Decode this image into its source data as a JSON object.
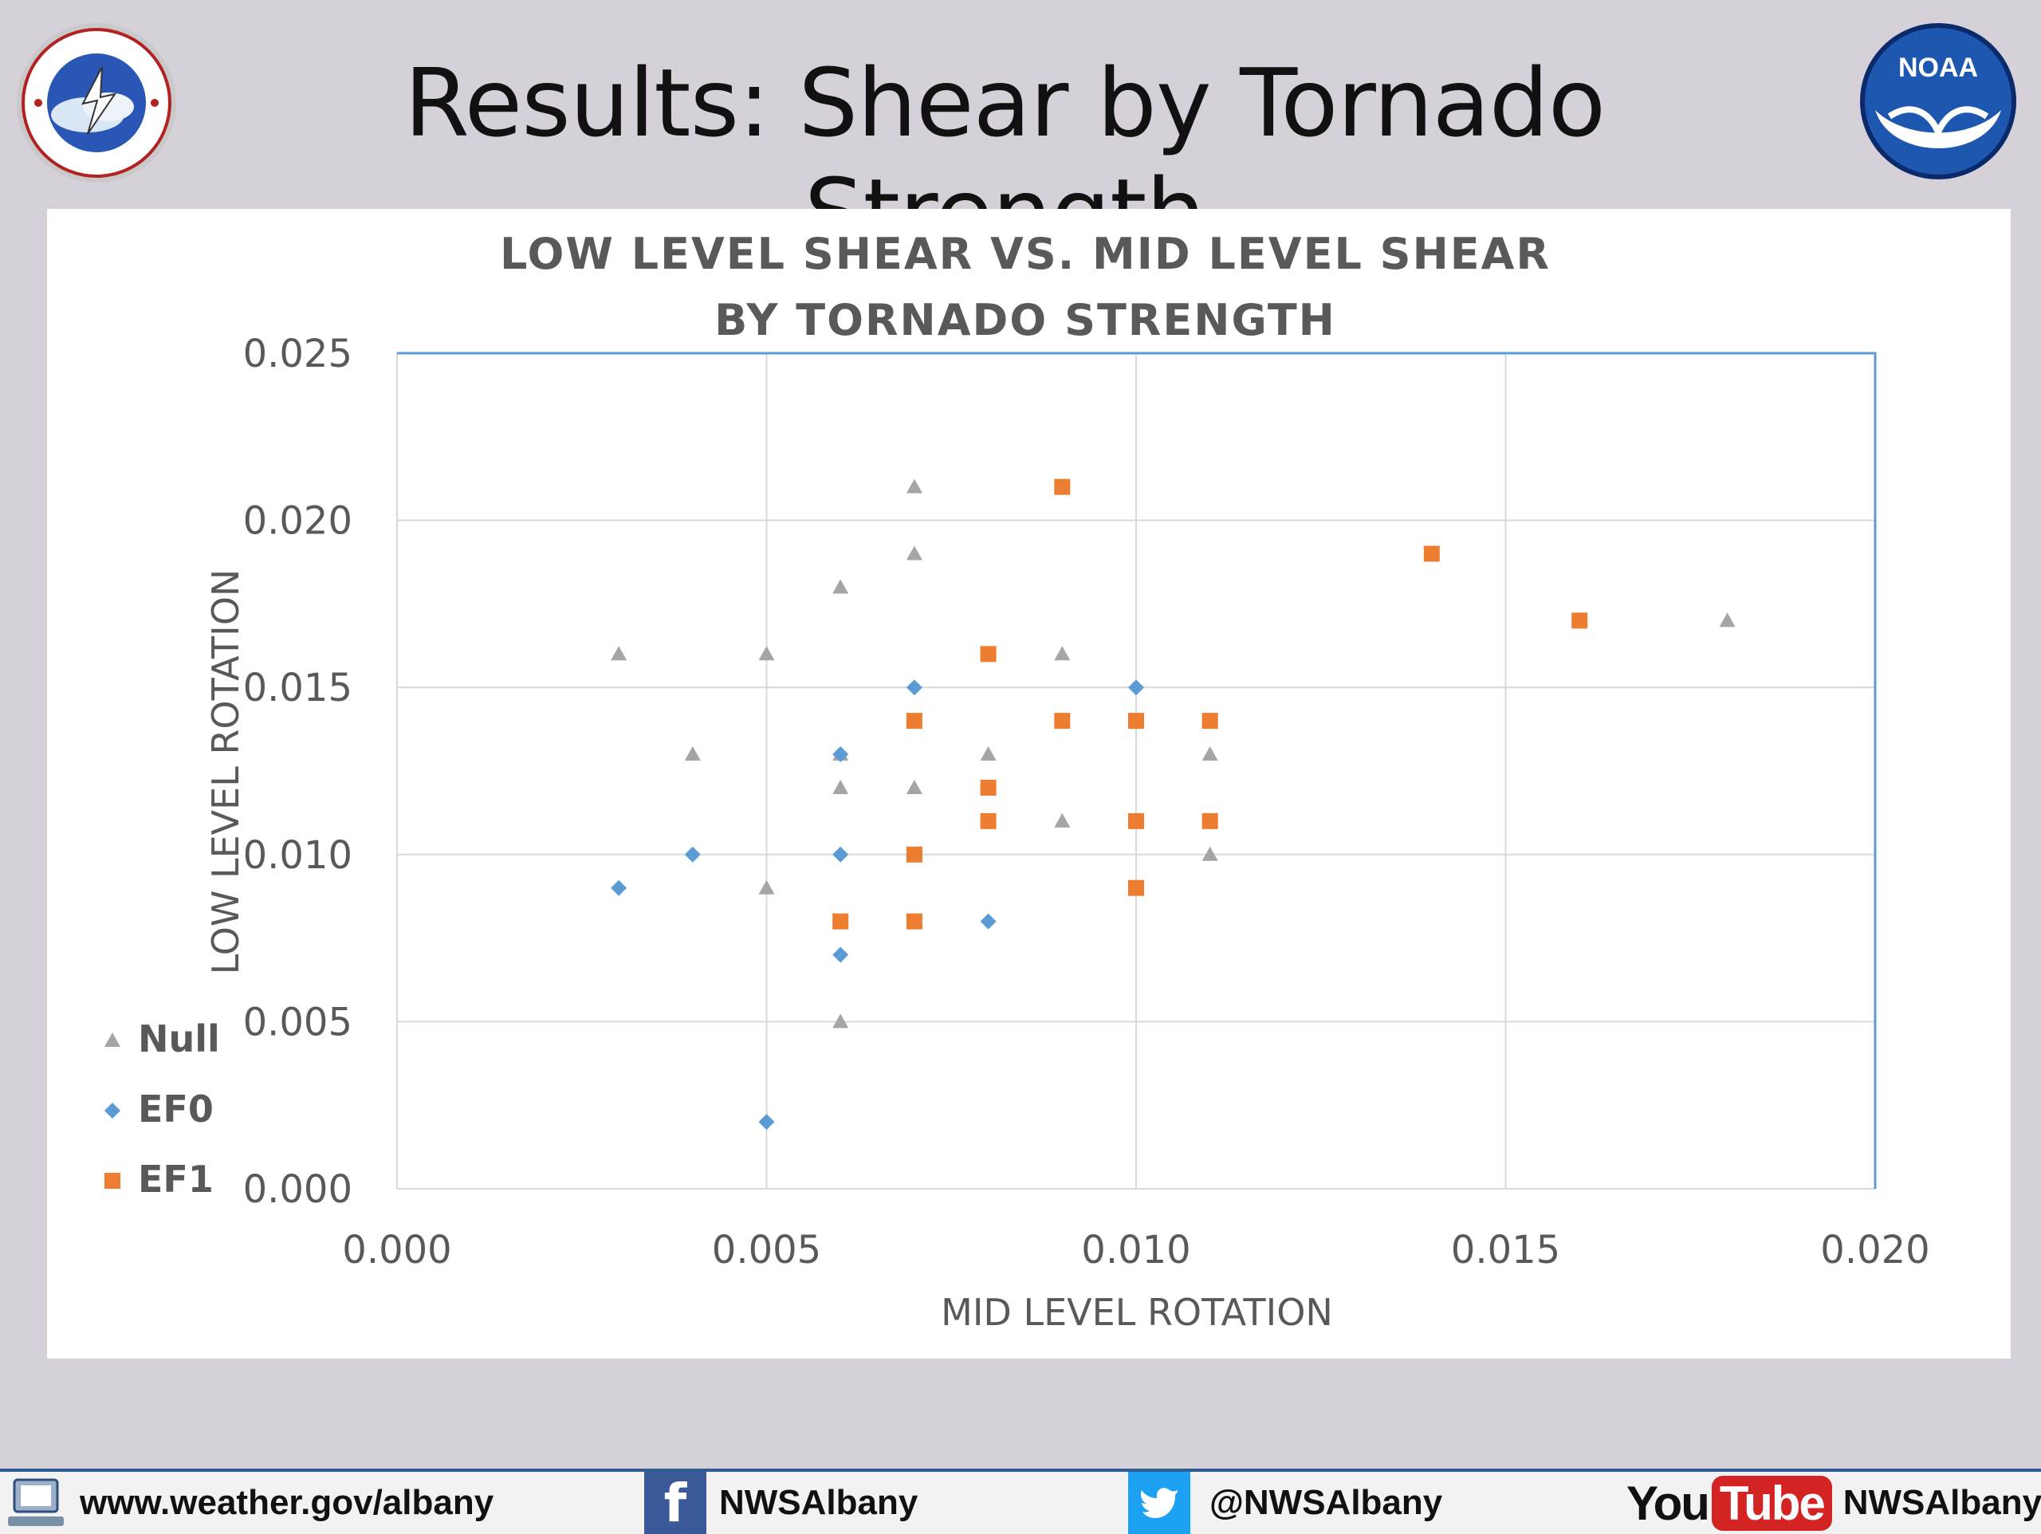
{
  "slide": {
    "title": "Results: Shear by Tornado Strength",
    "logo_left": "National Weather Service",
    "logo_right": "NOAA"
  },
  "footer": {
    "website": "www.weather.gov/albany",
    "facebook": "NWSAlbany",
    "twitter": "@NWSAlbany",
    "youtube_you": "You",
    "youtube_tube": "Tube",
    "youtube": "NWSAlbany",
    "icons": [
      "computer-icon",
      "facebook-icon",
      "twitter-icon",
      "youtube-icon"
    ]
  },
  "chart_data": {
    "type": "scatter",
    "title_line1": "LOW LEVEL SHEAR VS. MID LEVEL SHEAR",
    "title_line2": "BY TORNADO STRENGTH",
    "xlabel": "MID LEVEL ROTATION",
    "ylabel": "LOW LEVEL ROTATION",
    "xlim": [
      0,
      0.02
    ],
    "ylim": [
      0,
      0.025
    ],
    "xticks": [
      "0.000",
      "0.005",
      "0.010",
      "0.015",
      "0.020"
    ],
    "yticks": [
      "0.000",
      "0.005",
      "0.010",
      "0.015",
      "0.020",
      "0.025"
    ],
    "grid": true,
    "legend_position": "bottom-left",
    "series": [
      {
        "name": "Null",
        "marker": "triangle",
        "color": "#a5a5a5",
        "points": [
          [
            0.003,
            0.016
          ],
          [
            0.004,
            0.013
          ],
          [
            0.005,
            0.016
          ],
          [
            0.005,
            0.009
          ],
          [
            0.006,
            0.018
          ],
          [
            0.006,
            0.012
          ],
          [
            0.006,
            0.005
          ],
          [
            0.006,
            0.013
          ],
          [
            0.007,
            0.021
          ],
          [
            0.007,
            0.019
          ],
          [
            0.007,
            0.012
          ],
          [
            0.008,
            0.013
          ],
          [
            0.009,
            0.016
          ],
          [
            0.009,
            0.011
          ],
          [
            0.011,
            0.013
          ],
          [
            0.011,
            0.01
          ],
          [
            0.018,
            0.017
          ]
        ]
      },
      {
        "name": "EF0",
        "marker": "diamond",
        "color": "#5b9bd5",
        "points": [
          [
            0.003,
            0.009
          ],
          [
            0.004,
            0.01
          ],
          [
            0.005,
            0.002
          ],
          [
            0.006,
            0.013
          ],
          [
            0.006,
            0.01
          ],
          [
            0.006,
            0.007
          ],
          [
            0.007,
            0.015
          ],
          [
            0.008,
            0.008
          ],
          [
            0.01,
            0.015
          ]
        ]
      },
      {
        "name": "EF1",
        "marker": "square",
        "color": "#ed7d31",
        "points": [
          [
            0.006,
            0.008
          ],
          [
            0.007,
            0.014
          ],
          [
            0.007,
            0.01
          ],
          [
            0.007,
            0.008
          ],
          [
            0.008,
            0.016
          ],
          [
            0.008,
            0.012
          ],
          [
            0.008,
            0.011
          ],
          [
            0.009,
            0.021
          ],
          [
            0.009,
            0.014
          ],
          [
            0.01,
            0.014
          ],
          [
            0.01,
            0.011
          ],
          [
            0.01,
            0.009
          ],
          [
            0.011,
            0.014
          ],
          [
            0.011,
            0.011
          ],
          [
            0.014,
            0.019
          ],
          [
            0.016,
            0.017
          ]
        ]
      }
    ]
  }
}
